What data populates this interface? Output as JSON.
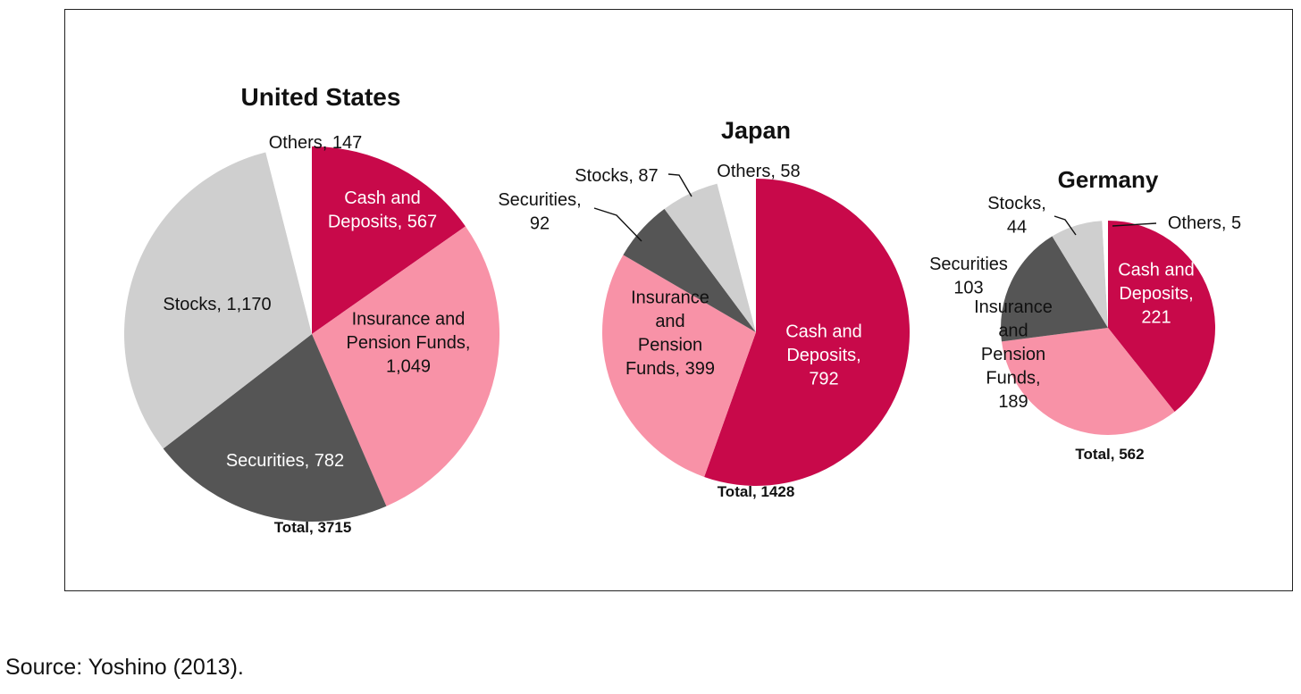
{
  "colors": {
    "cash": "#c8094a",
    "insurance": "#f892a7",
    "securities": "#555555",
    "stocks": "#cfcfcf",
    "others": "#ffffff"
  },
  "chart_data": [
    {
      "type": "pie",
      "title": "United States",
      "total_label": "Total, 3715",
      "slices": [
        {
          "key": "cash",
          "value": 567,
          "label_lines": [
            "Cash and",
            "Deposits, 567"
          ]
        },
        {
          "key": "insurance",
          "value": 1049,
          "label_lines": [
            "Insurance and",
            "Pension Funds,",
            "1,049"
          ]
        },
        {
          "key": "securities",
          "value": 782,
          "label_lines": [
            "Securities, 782"
          ]
        },
        {
          "key": "stocks",
          "value": 1170,
          "label_lines": [
            "Stocks, 1,170"
          ]
        },
        {
          "key": "others",
          "value": 147,
          "label_lines": [
            "Others, 147"
          ]
        }
      ]
    },
    {
      "type": "pie",
      "title": "Japan",
      "total_label": "Total, 1428",
      "slices": [
        {
          "key": "cash",
          "value": 792,
          "label_lines": [
            "Cash and",
            "Deposits,",
            "792"
          ]
        },
        {
          "key": "insurance",
          "value": 399,
          "label_lines": [
            "Insurance",
            "and",
            "Pension",
            "Funds, 399"
          ]
        },
        {
          "key": "securities",
          "value": 92,
          "label_lines": [
            "Securities,",
            "92"
          ]
        },
        {
          "key": "stocks",
          "value": 87,
          "label_lines": [
            "Stocks, 87"
          ]
        },
        {
          "key": "others",
          "value": 58,
          "label_lines": [
            "Others, 58"
          ]
        }
      ]
    },
    {
      "type": "pie",
      "title": "Germany",
      "total_label": "Total, 562",
      "slices": [
        {
          "key": "cash",
          "value": 221,
          "label_lines": [
            "Cash and",
            "Deposits,",
            "221"
          ]
        },
        {
          "key": "insurance",
          "value": 189,
          "label_lines": [
            "Insurance",
            "and",
            "Pension",
            "Funds,",
            "189"
          ]
        },
        {
          "key": "securities",
          "value": 103,
          "label_lines": [
            "Securities",
            "103"
          ]
        },
        {
          "key": "stocks",
          "value": 44,
          "label_lines": [
            "Stocks,",
            "44"
          ]
        },
        {
          "key": "others",
          "value": 5,
          "label_lines": [
            "Others, 5"
          ]
        }
      ]
    }
  ],
  "source": "Source: Yoshino (2013)."
}
